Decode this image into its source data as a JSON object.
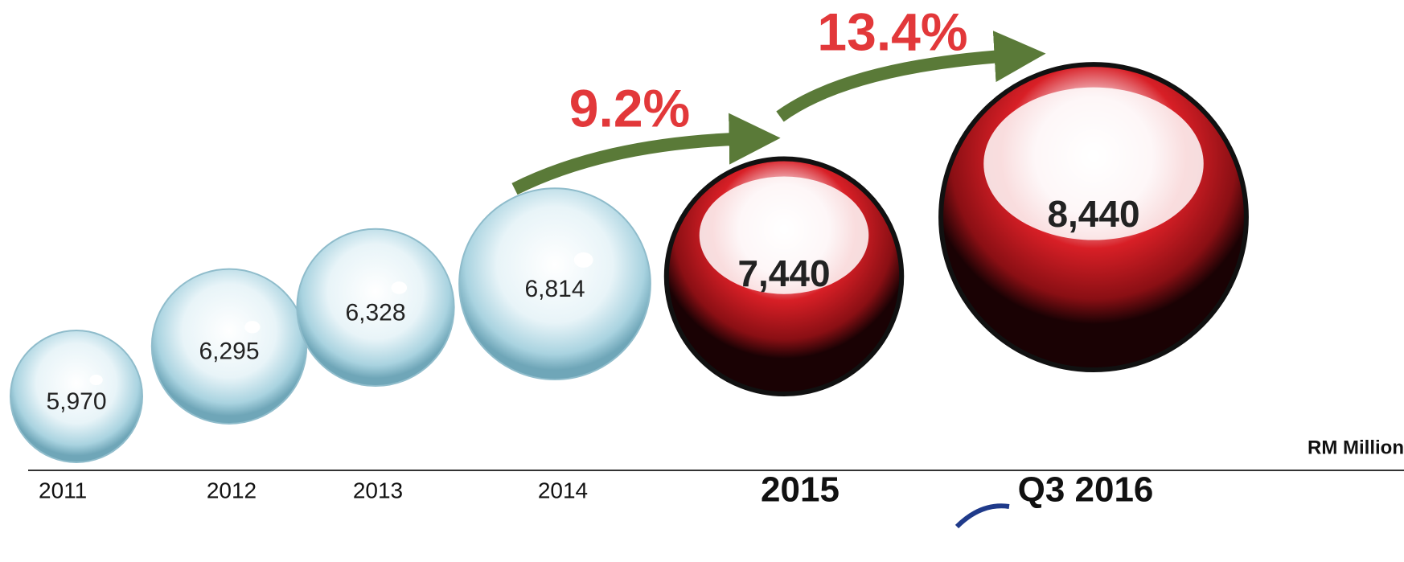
{
  "chart_data": {
    "type": "bubble",
    "categories": [
      "2011",
      "2012",
      "2013",
      "2014",
      "2015",
      "Q3 2016"
    ],
    "values": [
      5970,
      6295,
      6328,
      6814,
      7440,
      8440
    ],
    "value_labels": [
      "5,970",
      "6,295",
      "6,328",
      "6,814",
      "7,440",
      "8,440"
    ],
    "colors": [
      "#a9d3e0",
      "#a9d3e0",
      "#a9d3e0",
      "#a9d3e0",
      "#d81f26",
      "#d81f26"
    ],
    "unit_label": "RM Million",
    "annotations": [
      {
        "text": "9.2%"
      },
      {
        "text": "13.4%"
      }
    ],
    "annotation_color": "#e2383a"
  }
}
